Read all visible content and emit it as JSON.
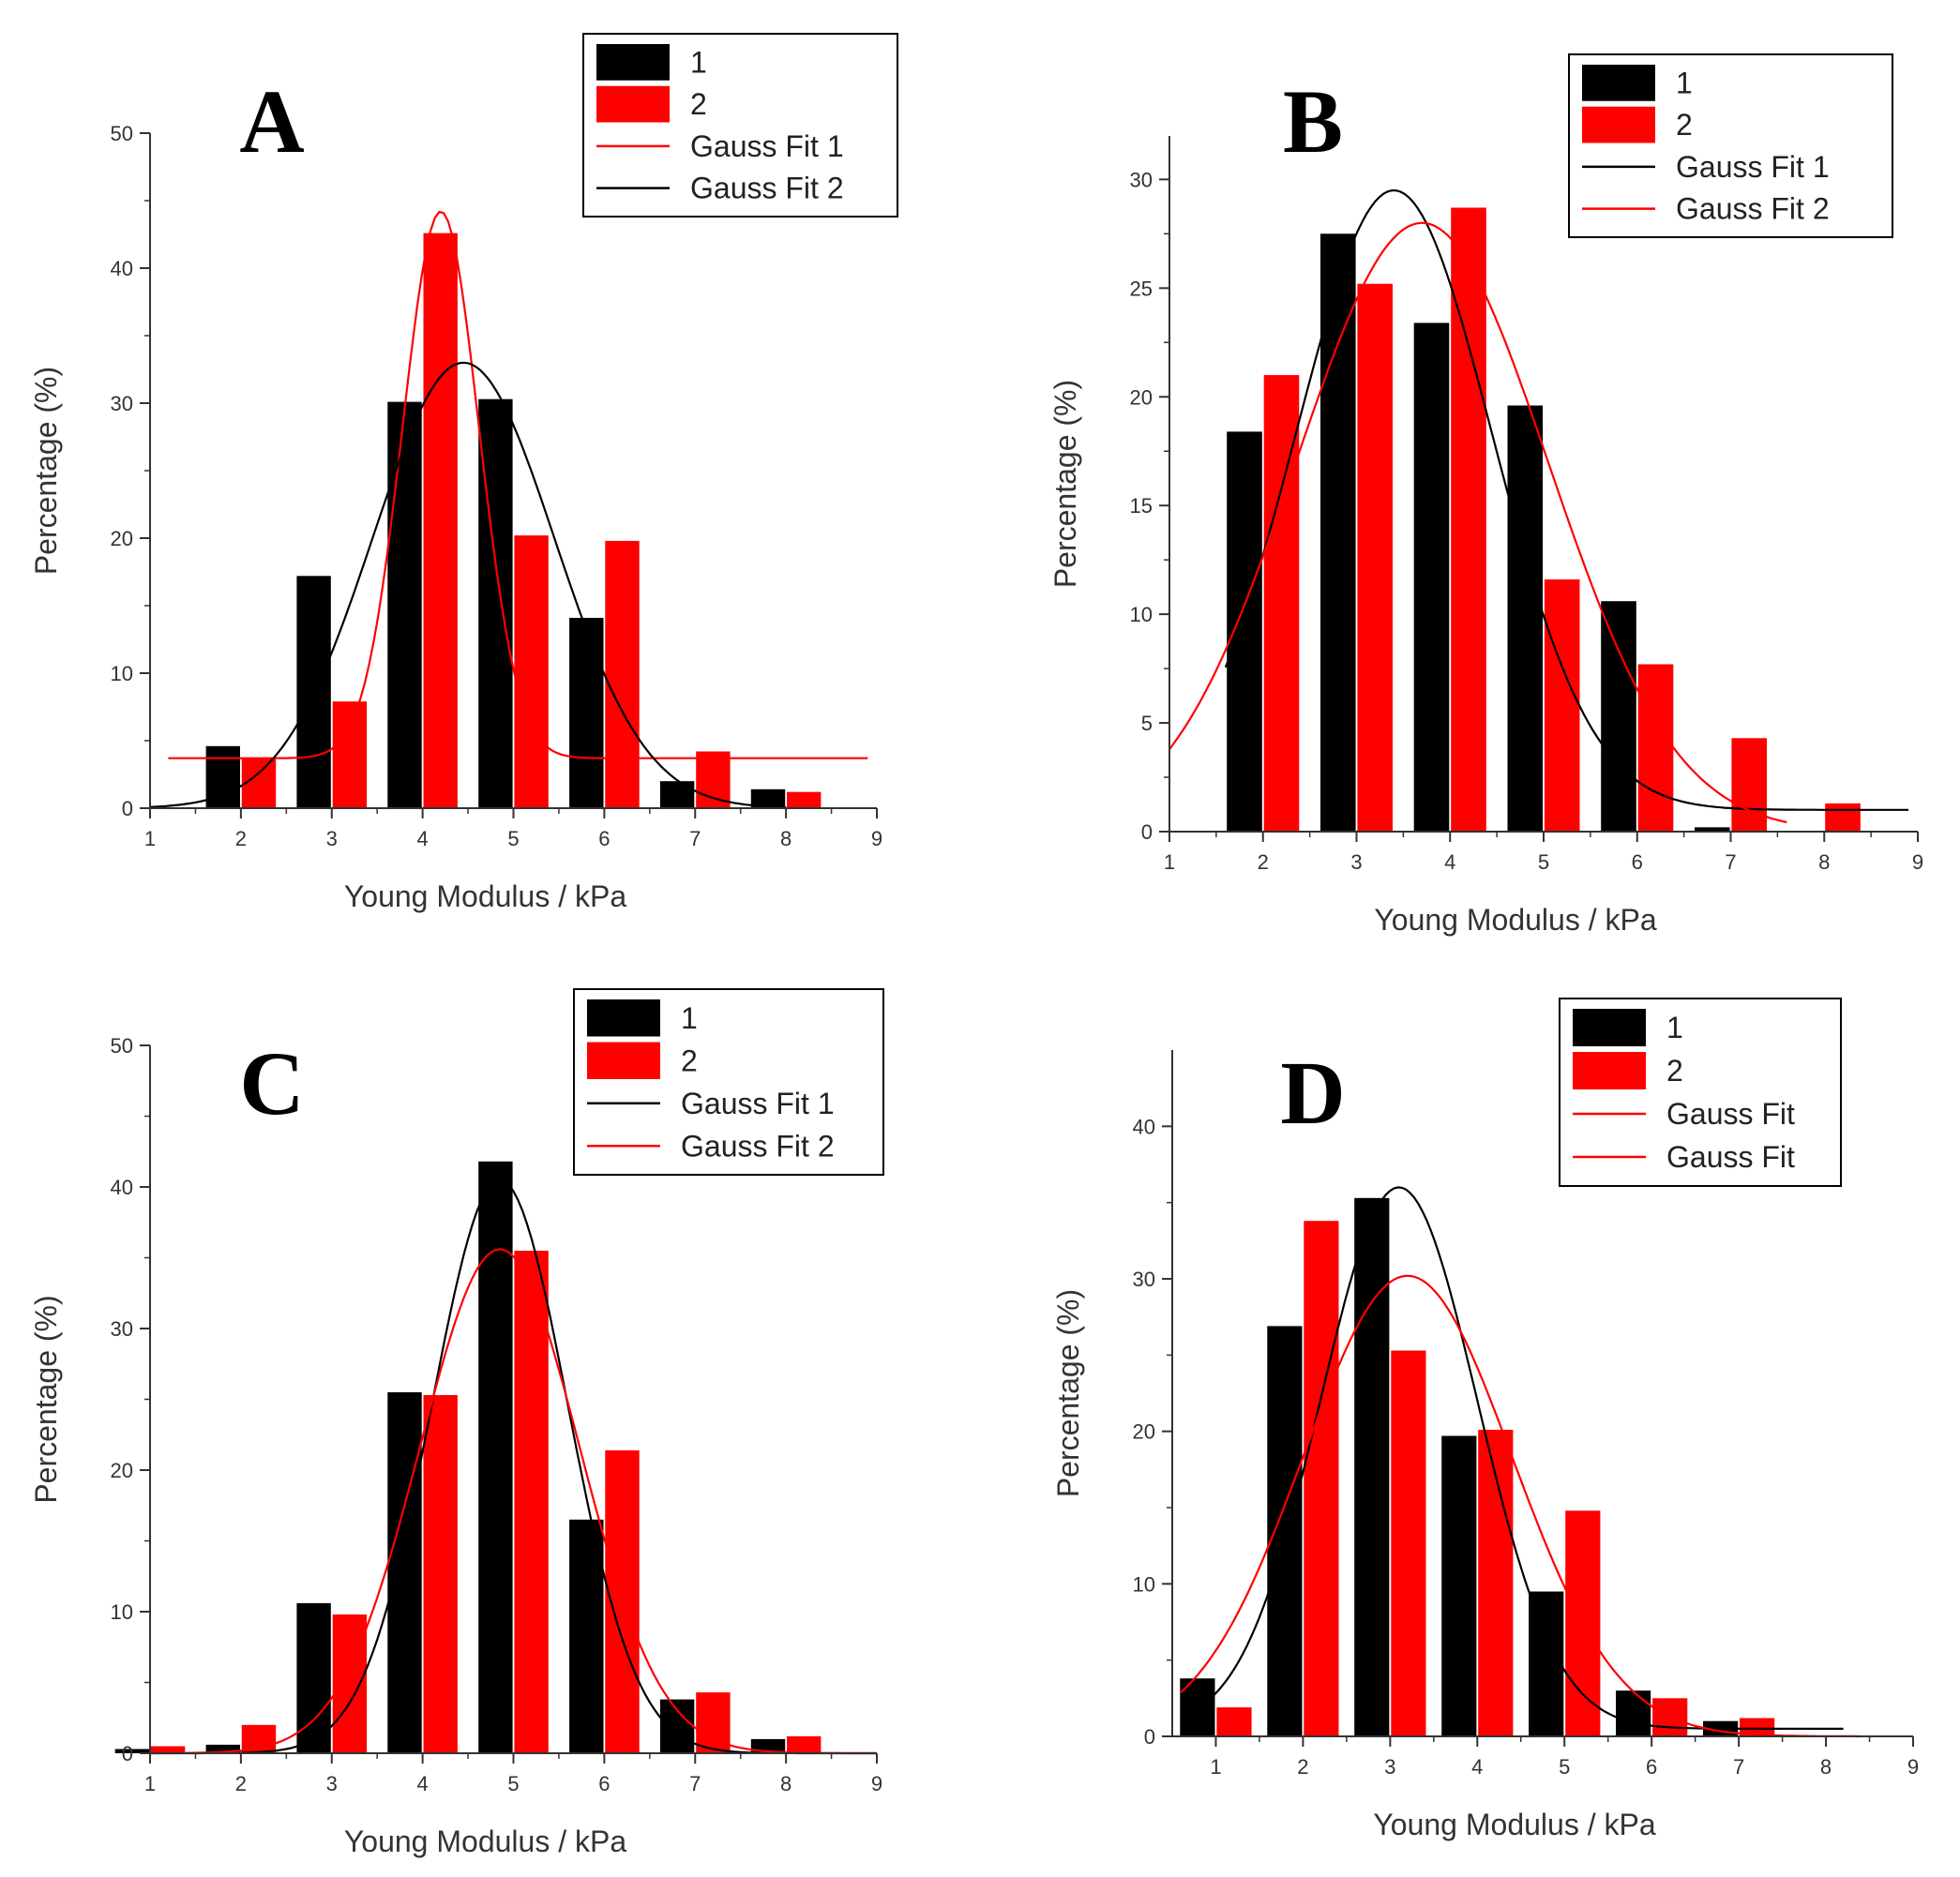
{
  "colors": {
    "series_1": "#000000",
    "series_2": "#ff0000",
    "axis": "#333333"
  },
  "chart_data": [
    {
      "type": "bar",
      "panel_label": "A",
      "xlabel": "Young Modulus / kPa",
      "ylabel": "Percentage (%)",
      "xlim": [
        1,
        9
      ],
      "ylim": [
        0,
        50
      ],
      "xticks": [
        "1",
        "2",
        "3",
        "4",
        "5",
        "6",
        "7",
        "8",
        "9"
      ],
      "yticks": [
        "0",
        "10",
        "20",
        "30",
        "40",
        "50"
      ],
      "legend_position": "top-right",
      "bin_centers": [
        2,
        3,
        4,
        5,
        6,
        7,
        8
      ],
      "series": [
        {
          "name": "1",
          "values": [
            4.6,
            17.2,
            30.1,
            30.3,
            14.1,
            2.0,
            1.4
          ]
        },
        {
          "name": "2",
          "values": [
            3.7,
            7.9,
            42.6,
            20.2,
            19.8,
            4.2,
            1.2
          ]
        }
      ],
      "fits": [
        {
          "name": "Gauss Fit 1",
          "series": "2",
          "baseline": 3.7,
          "amplitude": 40.5,
          "center": 4.2,
          "sigma": 0.42,
          "xrange": [
            1.2,
            8.9
          ]
        },
        {
          "name": "Gauss Fit 2",
          "series": "1",
          "baseline": 0,
          "amplitude": 33,
          "center": 4.45,
          "sigma": 1.0,
          "xrange": [
            1.0,
            8.0
          ]
        }
      ],
      "legend": [
        {
          "label": "1",
          "kind": "bar",
          "color": "#000000"
        },
        {
          "label": "2",
          "kind": "bar",
          "color": "#ff0000"
        },
        {
          "label": "Gauss Fit 1",
          "kind": "line",
          "color": "#ff0000"
        },
        {
          "label": "Gauss Fit 2",
          "kind": "line",
          "color": "#000000"
        }
      ]
    },
    {
      "type": "bar",
      "panel_label": "B",
      "xlabel": "Young Modulus / kPa",
      "ylabel": "Percentage (%)",
      "xlim": [
        1,
        9
      ],
      "ylim": [
        0,
        32
      ],
      "xticks": [
        "1",
        "2",
        "3",
        "4",
        "5",
        "6",
        "7",
        "8",
        "9"
      ],
      "yticks": [
        "0",
        "5",
        "10",
        "15",
        "20",
        "25",
        "30"
      ],
      "legend_position": "top-right",
      "bin_centers": [
        2,
        3,
        4,
        5,
        6,
        7,
        8
      ],
      "series": [
        {
          "name": "1",
          "values": [
            18.4,
            27.5,
            23.4,
            19.6,
            10.6,
            0.2,
            0
          ]
        },
        {
          "name": "2",
          "values": [
            21.0,
            25.2,
            28.7,
            11.6,
            7.7,
            4.3,
            1.3
          ]
        }
      ],
      "fits": [
        {
          "name": "Gauss Fit 1",
          "series": "1",
          "baseline": 1.0,
          "amplitude": 28.5,
          "center": 3.4,
          "sigma": 1.05,
          "xrange": [
            1.6,
            8.9
          ]
        },
        {
          "name": "Gauss Fit 2",
          "series": "2",
          "baseline": 0,
          "amplitude": 28,
          "center": 3.7,
          "sigma": 1.35,
          "xrange": [
            1.0,
            7.6
          ]
        }
      ],
      "legend": [
        {
          "label": "1",
          "kind": "bar",
          "color": "#000000"
        },
        {
          "label": "2",
          "kind": "bar",
          "color": "#ff0000"
        },
        {
          "label": "Gauss Fit 1",
          "kind": "line",
          "color": "#000000"
        },
        {
          "label": "Gauss Fit 2",
          "kind": "line",
          "color": "#ff0000"
        }
      ]
    },
    {
      "type": "bar",
      "panel_label": "C",
      "xlabel": "Young Modulus / kPa",
      "ylabel": "Percentage (%)",
      "xlim": [
        1,
        9
      ],
      "ylim": [
        0,
        50
      ],
      "xticks": [
        "1",
        "2",
        "3",
        "4",
        "5",
        "6",
        "7",
        "8",
        "9"
      ],
      "yticks": [
        "0",
        "10",
        "20",
        "30",
        "40",
        "50"
      ],
      "legend_position": "top-right",
      "bin_centers": [
        1,
        2,
        3,
        4,
        5,
        6,
        7,
        8
      ],
      "series": [
        {
          "name": "1",
          "values": [
            0.3,
            0.6,
            10.6,
            25.5,
            41.8,
            16.5,
            3.8,
            1.0
          ]
        },
        {
          "name": "2",
          "values": [
            0.5,
            2.0,
            9.8,
            25.3,
            35.5,
            21.4,
            4.3,
            1.2
          ]
        }
      ],
      "fits": [
        {
          "name": "Gauss Fit 1",
          "series": "1",
          "baseline": 0,
          "amplitude": 40.5,
          "center": 4.85,
          "sigma": 0.75,
          "xrange": [
            1.0,
            9.0
          ]
        },
        {
          "name": "Gauss Fit 2",
          "series": "2",
          "baseline": 0,
          "amplitude": 35.6,
          "center": 4.85,
          "sigma": 0.88,
          "xrange": [
            1.0,
            9.0
          ]
        }
      ],
      "legend": [
        {
          "label": "1",
          "kind": "bar",
          "color": "#000000"
        },
        {
          "label": "2",
          "kind": "bar",
          "color": "#ff0000"
        },
        {
          "label": "Gauss Fit 1",
          "kind": "line",
          "color": "#000000"
        },
        {
          "label": "Gauss Fit 2",
          "kind": "line",
          "color": "#ff0000"
        }
      ]
    },
    {
      "type": "bar",
      "panel_label": "D",
      "xlabel": "Young Modulus / kPa",
      "ylabel": "Percentage (%)",
      "xlim": [
        0.5,
        9
      ],
      "ylim": [
        0,
        45
      ],
      "xticks": [
        "1",
        "2",
        "3",
        "4",
        "5",
        "6",
        "7",
        "8",
        "9"
      ],
      "yticks": [
        "0",
        "10",
        "20",
        "30",
        "40"
      ],
      "legend_position": "top-right",
      "bin_centers": [
        1,
        2,
        3,
        4,
        5,
        6,
        7,
        8
      ],
      "series": [
        {
          "name": "1",
          "values": [
            3.8,
            26.9,
            35.3,
            19.7,
            9.5,
            3.0,
            1.0,
            0
          ]
        },
        {
          "name": "2",
          "values": [
            1.9,
            33.8,
            25.3,
            20.1,
            14.8,
            2.5,
            1.2,
            0
          ]
        }
      ],
      "fits": [
        {
          "name": "Gauss Fit",
          "series": "1",
          "baseline": 0.5,
          "amplitude": 35.5,
          "center": 3.1,
          "sigma": 0.9,
          "xrange": [
            0.7,
            8.2
          ]
        },
        {
          "name": "Gauss Fit",
          "series": "2",
          "baseline": 0,
          "amplitude": 30.2,
          "center": 3.2,
          "sigma": 1.2,
          "xrange": [
            0.6,
            8.4
          ]
        }
      ],
      "legend": [
        {
          "label": "1",
          "kind": "bar",
          "color": "#000000"
        },
        {
          "label": "2",
          "kind": "bar",
          "color": "#ff0000"
        },
        {
          "label": "Gauss Fit",
          "kind": "line",
          "color": "#ff0000"
        },
        {
          "label": "Gauss Fit",
          "kind": "line",
          "color": "#ff0000"
        }
      ]
    }
  ]
}
